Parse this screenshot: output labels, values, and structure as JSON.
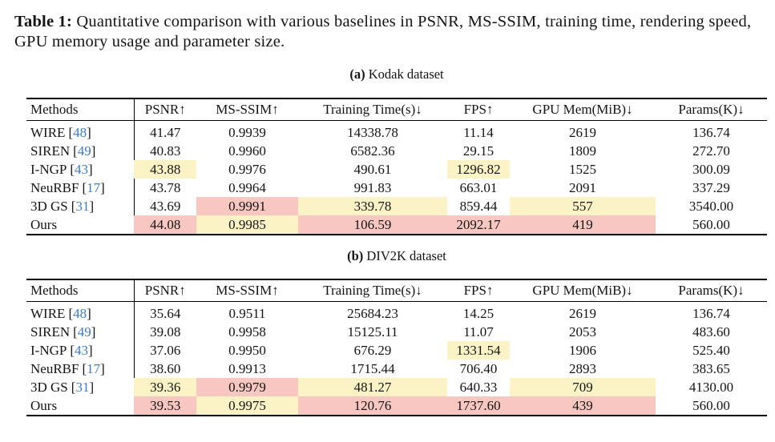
{
  "title": {
    "label": "Table 1:",
    "line1": "Quantitative comparison with various baselines in PSNR, MS-SSIM, training",
    "line2": "time, rendering speed, GPU memory usage and parameter size."
  },
  "colors": {
    "best_highlight": "#f9c7c2",
    "second_best_highlight": "#fbf3c6",
    "citation_blue": "#3d7cc0",
    "rule_black": "#000000"
  },
  "columns": [
    "Methods",
    "PSNR↑",
    "MS-SSIM↑",
    "Training Time(s)↓",
    "FPS↑",
    "GPU Mem(MiB)↓",
    "Params(K)↓"
  ],
  "tables": [
    {
      "caption_label": "(a)",
      "caption_text": "Kodak dataset",
      "rows": [
        {
          "method": "WIRE",
          "cite_open": "[",
          "cite_num": "48",
          "cite_close": "]",
          "values": [
            "41.47",
            "0.9939",
            "14338.78",
            "11.14",
            "2619",
            "136.74"
          ],
          "marks": [
            null,
            null,
            null,
            null,
            null,
            null
          ]
        },
        {
          "method": "SIREN",
          "cite_open": "[",
          "cite_num": "49",
          "cite_close": "]",
          "values": [
            "40.83",
            "0.9960",
            "6582.36",
            "29.15",
            "1809",
            "272.70"
          ],
          "marks": [
            null,
            null,
            null,
            null,
            null,
            null
          ]
        },
        {
          "method": "I-NGP",
          "cite_open": "[",
          "cite_num": "43",
          "cite_close": "]",
          "values": [
            "43.88",
            "0.9976",
            "490.61",
            "1296.82",
            "1525",
            "300.09"
          ],
          "marks": [
            "yellow",
            null,
            null,
            "yellow",
            null,
            null
          ]
        },
        {
          "method": "NeuRBF",
          "cite_open": "[",
          "cite_num": "17",
          "cite_close": "]",
          "values": [
            "43.78",
            "0.9964",
            "991.83",
            "663.01",
            "2091",
            "337.29"
          ],
          "marks": [
            null,
            null,
            null,
            null,
            null,
            null
          ]
        },
        {
          "method": "3D GS",
          "cite_open": "[",
          "cite_num": "31",
          "cite_close": "]",
          "values": [
            "43.69",
            "0.9991",
            "339.78",
            "859.44",
            "557",
            "3540.00"
          ],
          "marks": [
            null,
            "red",
            "yellow",
            null,
            "yellow",
            null
          ]
        },
        {
          "method": "Ours",
          "cite_open": "",
          "cite_num": "",
          "cite_close": "",
          "values": [
            "44.08",
            "0.9985",
            "106.59",
            "2092.17",
            "419",
            "560.00"
          ],
          "marks": [
            "red",
            "yellow",
            "red",
            "red",
            "red",
            null
          ]
        }
      ]
    },
    {
      "caption_label": "(b)",
      "caption_text": "DIV2K dataset",
      "rows": [
        {
          "method": "WIRE",
          "cite_open": "[",
          "cite_num": "48",
          "cite_close": "]",
          "values": [
            "35.64",
            "0.9511",
            "25684.23",
            "14.25",
            "2619",
            "136.74"
          ],
          "marks": [
            null,
            null,
            null,
            null,
            null,
            null
          ]
        },
        {
          "method": "SIREN",
          "cite_open": "[",
          "cite_num": "49",
          "cite_close": "]",
          "values": [
            "39.08",
            "0.9958",
            "15125.11",
            "11.07",
            "2053",
            "483.60"
          ],
          "marks": [
            null,
            null,
            null,
            null,
            null,
            null
          ]
        },
        {
          "method": "I-NGP",
          "cite_open": "[",
          "cite_num": "43",
          "cite_close": "]",
          "values": [
            "37.06",
            "0.9950",
            "676.29",
            "1331.54",
            "1906",
            "525.40"
          ],
          "marks": [
            null,
            null,
            null,
            "yellow",
            null,
            null
          ]
        },
        {
          "method": "NeuRBF",
          "cite_open": "[",
          "cite_num": "17",
          "cite_close": "]",
          "values": [
            "38.60",
            "0.9913",
            "1715.44",
            "706.40",
            "2893",
            "383.65"
          ],
          "marks": [
            null,
            null,
            null,
            null,
            null,
            null
          ]
        },
        {
          "method": "3D GS",
          "cite_open": "[",
          "cite_num": "31",
          "cite_close": "]",
          "values": [
            "39.36",
            "0.9979",
            "481.27",
            "640.33",
            "709",
            "4130.00"
          ],
          "marks": [
            "yellow",
            "red",
            "yellow",
            null,
            "yellow",
            null
          ]
        },
        {
          "method": "Ours",
          "cite_open": "",
          "cite_num": "",
          "cite_close": "",
          "values": [
            "39.53",
            "0.9975",
            "120.76",
            "1737.60",
            "439",
            "560.00"
          ],
          "marks": [
            "red",
            "yellow",
            "red",
            "red",
            "red",
            null
          ]
        }
      ]
    }
  ]
}
